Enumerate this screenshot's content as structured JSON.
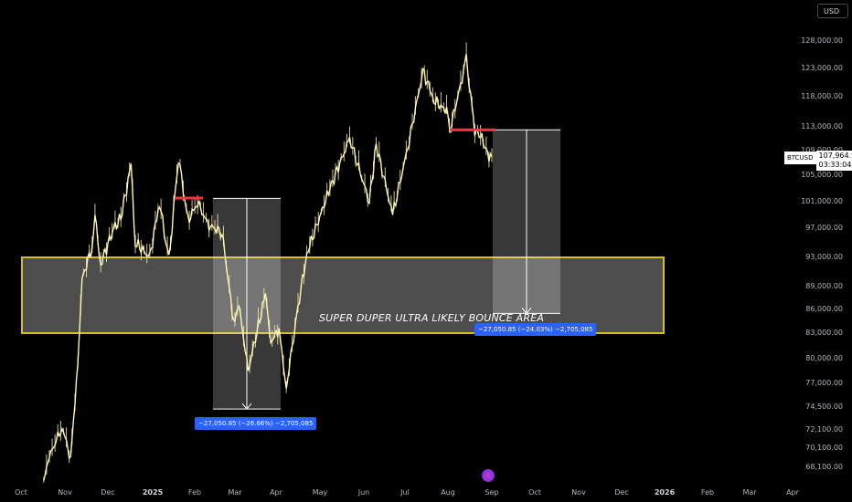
{
  "chart_data": {
    "type": "candlestick",
    "symbol": "BTCUSD",
    "currency": "USD",
    "last_price": "107,964.97",
    "countdown": "03:33:04",
    "y_ticks": [
      "128,000.00",
      "123,000.00",
      "118,000.00",
      "113,000.00",
      "109,000.00",
      "105,000.00",
      "101,000.00",
      "97,000.00",
      "93,000.00",
      "89,000.00",
      "86,000.00",
      "83,000.00",
      "80,000.00",
      "77,000.00",
      "74,500.00",
      "72,100.00",
      "70,100.00",
      "68,100.00"
    ],
    "x_ticks": [
      "Oct",
      "Nov",
      "Dec",
      "2025",
      "Feb",
      "Mar",
      "Apr",
      "May",
      "Jun",
      "Jul",
      "Aug",
      "Sep",
      "Oct",
      "Nov",
      "Dec",
      "2026",
      "Feb",
      "Mar",
      "Apr"
    ],
    "price_path": [
      [
        "2024-10-17",
        67000
      ],
      [
        "2024-10-22",
        69500
      ],
      [
        "2024-10-30",
        72500
      ],
      [
        "2024-11-05",
        69000
      ],
      [
        "2024-11-10",
        79500
      ],
      [
        "2024-11-13",
        90000
      ],
      [
        "2024-11-20",
        94500
      ],
      [
        "2024-11-22",
        99000
      ],
      [
        "2024-11-26",
        92000
      ],
      [
        "2024-12-05",
        97000
      ],
      [
        "2024-12-10",
        98500
      ],
      [
        "2024-12-17",
        106500
      ],
      [
        "2024-12-20",
        95000
      ],
      [
        "2024-12-30",
        93000
      ],
      [
        "2025-01-06",
        101000
      ],
      [
        "2025-01-13",
        92500
      ],
      [
        "2025-01-20",
        108000
      ],
      [
        "2025-01-27",
        98000
      ],
      [
        "2025-02-03",
        101000
      ],
      [
        "2025-02-10",
        97500
      ],
      [
        "2025-02-20",
        96500
      ],
      [
        "2025-02-28",
        84500
      ],
      [
        "2025-03-04",
        86500
      ],
      [
        "2025-03-11",
        78600
      ],
      [
        "2025-03-24",
        88000
      ],
      [
        "2025-03-28",
        82000
      ],
      [
        "2025-04-03",
        83500
      ],
      [
        "2025-04-08",
        76500
      ],
      [
        "2025-04-14",
        84000
      ],
      [
        "2025-04-22",
        93500
      ],
      [
        "2025-05-08",
        103000
      ],
      [
        "2025-05-22",
        111000
      ],
      [
        "2025-06-05",
        101000
      ],
      [
        "2025-06-10",
        110000
      ],
      [
        "2025-06-22",
        99000
      ],
      [
        "2025-07-03",
        109500
      ],
      [
        "2025-07-14",
        122500
      ],
      [
        "2025-07-22",
        117500
      ],
      [
        "2025-07-31",
        115500
      ],
      [
        "2025-08-03",
        113000
      ],
      [
        "2025-08-14",
        124500
      ],
      [
        "2025-08-20",
        112500
      ],
      [
        "2025-08-25",
        111000
      ],
      [
        "2025-08-30",
        108000
      ],
      [
        "2025-09-01",
        107965
      ]
    ],
    "annotations": {
      "zone": {
        "top": 93000,
        "bottom": 83000,
        "label": "SUPER DUPER ULTRA LIKELY BOUNCE AREA"
      },
      "measure_1": {
        "label": "−27,050.85 (−26.66%) −2,705,085",
        "from": 101500,
        "to": 74300
      },
      "measure_2": {
        "label": "−27,050.85 (−24.03%) −2,705,085",
        "from": 112500,
        "to": 85500
      },
      "resistance_1": 101000,
      "resistance_2": 112500
    }
  }
}
